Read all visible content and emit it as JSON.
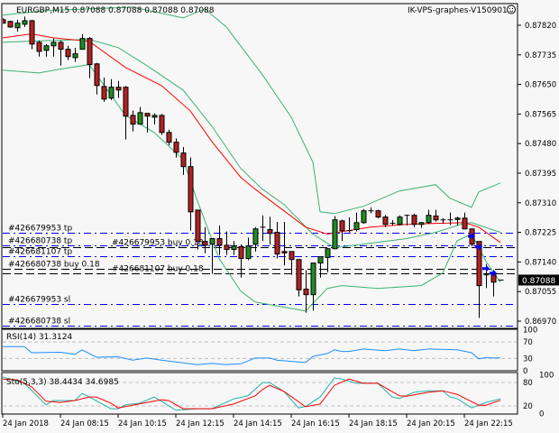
{
  "header": {
    "symbol_line": "EURGBP,M15  0.87088 0.87088 0.87088 0.87088",
    "expert_label": "IK-VPS-graphes-V150901",
    "expert_icon": "smiley-face-icon"
  },
  "colors": {
    "background": "#f7f7f7",
    "bull_candle": "#228b22",
    "bear_candle": "#b22222",
    "bollinger": "#3cb371",
    "moving_average": "#ff0000",
    "order_line": "#0000ff",
    "position_line": "#000000",
    "rsi": "#1e90ff",
    "stoch_main": "#20b2aa",
    "stoch_signal": "#ff0000"
  },
  "chart_data": {
    "type": "candlestick",
    "symbol": "EURGBP",
    "timeframe": "M15",
    "start_time": "06:15",
    "interval_min": 15,
    "current_price": "0.87088",
    "ylim": [
      0.8695,
      0.8787
    ],
    "price_ticks": [
      "0.87820",
      "0.87735",
      "0.87650",
      "0.87565",
      "0.87480",
      "0.87395",
      "0.87310",
      "0.87225",
      "0.87140",
      "0.87055",
      "0.86970"
    ],
    "time_ticks": [
      {
        "time": "06:15",
        "label": "24 Jan 2018"
      },
      {
        "time": "08:15",
        "label": "24 Jan 08:15"
      },
      {
        "time": "10:15",
        "label": "24 Jan 10:15"
      },
      {
        "time": "12:15",
        "label": "24 Jan 12:15"
      },
      {
        "time": "14:15",
        "label": "24 Jan 14:15"
      },
      {
        "time": "16:15",
        "label": "24 Jan 16:15"
      },
      {
        "time": "18:15",
        "label": "24 Jan 18:15"
      },
      {
        "time": "20:15",
        "label": "24 Jan 20:15"
      },
      {
        "time": "22:15",
        "label": "24 Jan 22:15"
      }
    ],
    "ohlc": [
      [
        0.87836,
        0.8784,
        0.87826,
        0.87826
      ],
      [
        0.87831,
        0.87833,
        0.87813,
        0.87815
      ],
      [
        0.87813,
        0.87836,
        0.87802,
        0.87826
      ],
      [
        0.87823,
        0.87845,
        0.87815,
        0.87833
      ],
      [
        0.87833,
        0.87836,
        0.87751,
        0.87766
      ],
      [
        0.87771,
        0.87776,
        0.8773,
        0.87745
      ],
      [
        0.87748,
        0.87766,
        0.8773,
        0.87761
      ],
      [
        0.87761,
        0.87782,
        0.8773,
        0.87771
      ],
      [
        0.87771,
        0.87776,
        0.87704,
        0.87751
      ],
      [
        0.87751,
        0.87761,
        0.8772,
        0.8773
      ],
      [
        0.87727,
        0.87755,
        0.87715,
        0.87738
      ],
      [
        0.87751,
        0.87794,
        0.87751,
        0.87782
      ],
      [
        0.87782,
        0.87786,
        0.87668,
        0.87707
      ],
      [
        0.87709,
        0.87712,
        0.87621,
        0.87647
      ],
      [
        0.87644,
        0.8767,
        0.876,
        0.87608
      ],
      [
        0.87611,
        0.87665,
        0.87605,
        0.87642
      ],
      [
        0.87642,
        0.8766,
        0.87611,
        0.87634
      ],
      [
        0.87642,
        0.87645,
        0.87492,
        0.87559
      ],
      [
        0.87561,
        0.87575,
        0.87515,
        0.87536
      ],
      [
        0.87536,
        0.87585,
        0.87536,
        0.87569
      ],
      [
        0.87567,
        0.87567,
        0.87512,
        0.87559
      ],
      [
        0.87556,
        0.87567,
        0.87535,
        0.87561
      ],
      [
        0.87561,
        0.87565,
        0.87505,
        0.87512
      ],
      [
        0.87512,
        0.8752,
        0.87475,
        0.87484
      ],
      [
        0.87484,
        0.87495,
        0.8744,
        0.87455
      ],
      [
        0.87453,
        0.8747,
        0.8739,
        0.87414
      ],
      [
        0.87414,
        0.8744,
        0.8723,
        0.87284
      ],
      [
        0.87289,
        0.87289,
        0.87176,
        0.87199
      ],
      [
        0.87199,
        0.8724,
        0.87165,
        0.87188
      ],
      [
        0.87191,
        0.87207,
        0.87106,
        0.87207
      ],
      [
        0.87207,
        0.87245,
        0.8716,
        0.87188
      ],
      [
        0.87188,
        0.87228,
        0.8716,
        0.87176
      ],
      [
        0.87176,
        0.872,
        0.8716,
        0.87186
      ],
      [
        0.87184,
        0.8719,
        0.87095,
        0.8715
      ],
      [
        0.8715,
        0.8721,
        0.87145,
        0.87186
      ],
      [
        0.87191,
        0.8724,
        0.8717,
        0.87235
      ],
      [
        0.87238,
        0.87274,
        0.872,
        0.8724
      ],
      [
        0.87233,
        0.8727,
        0.8719,
        0.87222
      ],
      [
        0.87225,
        0.87255,
        0.8715,
        0.87163
      ],
      [
        0.8717,
        0.87255,
        0.8713,
        0.87166
      ],
      [
        0.8717,
        0.8717,
        0.87103,
        0.87147
      ],
      [
        0.87147,
        0.87147,
        0.87041,
        0.8706
      ],
      [
        0.87062,
        0.87116,
        0.86994,
        0.87046
      ],
      [
        0.87046,
        0.87137,
        0.87,
        0.87137
      ],
      [
        0.87137,
        0.87155,
        0.87095,
        0.87155
      ],
      [
        0.87153,
        0.8718,
        0.8711,
        0.87178
      ],
      [
        0.87178,
        0.87272,
        0.87178,
        0.87261
      ],
      [
        0.87258,
        0.87262,
        0.872,
        0.8723
      ],
      [
        0.8723,
        0.87268,
        0.87225,
        0.8723
      ],
      [
        0.87233,
        0.87282,
        0.87228,
        0.87253
      ],
      [
        0.87253,
        0.87292,
        0.8725,
        0.87287
      ],
      [
        0.87287,
        0.87297,
        0.8728,
        0.87287
      ],
      [
        0.87287,
        0.8729,
        0.87265,
        0.87269
      ],
      [
        0.87269,
        0.87275,
        0.8724,
        0.87248
      ],
      [
        0.87251,
        0.8726,
        0.87245,
        0.8725
      ],
      [
        0.87248,
        0.87274,
        0.87245,
        0.87269
      ],
      [
        0.87274,
        0.87276,
        0.87245,
        0.87274
      ],
      [
        0.87274,
        0.87278,
        0.8724,
        0.87248
      ],
      [
        0.87248,
        0.87255,
        0.87238,
        0.87253
      ],
      [
        0.87253,
        0.8729,
        0.8725,
        0.87274
      ],
      [
        0.87272,
        0.8729,
        0.87256,
        0.87261
      ],
      [
        0.87261,
        0.87266,
        0.8725,
        0.87261
      ],
      [
        0.87261,
        0.87282,
        0.87246,
        0.87261
      ],
      [
        0.87262,
        0.8727,
        0.87245,
        0.87266
      ],
      [
        0.87266,
        0.87282,
        0.87235,
        0.87235
      ],
      [
        0.87235,
        0.87235,
        0.87185,
        0.87191
      ],
      [
        0.87199,
        0.87199,
        0.86979,
        0.87072
      ],
      [
        0.87103,
        0.87134,
        0.87065,
        0.87103
      ],
      [
        0.87103,
        0.87105,
        0.87041,
        0.87082
      ],
      [
        0.87088,
        0.87088,
        0.87088,
        0.87088
      ]
    ],
    "moving_average": [
      [
        "06:15",
        0.87784
      ],
      [
        "07:15",
        0.87795
      ],
      [
        "08:00",
        0.87784
      ],
      [
        "09:15",
        0.87774
      ],
      [
        "10:30",
        0.87699
      ],
      [
        "11:45",
        0.87647
      ],
      [
        "12:45",
        0.87574
      ],
      [
        "13:30",
        0.87486
      ],
      [
        "14:30",
        0.87383
      ],
      [
        "15:00",
        0.87349
      ],
      [
        "16:45",
        0.8724
      ],
      [
        "17:30",
        0.8722
      ],
      [
        "18:00",
        0.87227
      ],
      [
        "19:00",
        0.8724
      ],
      [
        "20:15",
        0.87248
      ],
      [
        "21:15",
        0.87251
      ],
      [
        "22:15",
        0.87253
      ],
      [
        "22:45",
        0.8724
      ],
      [
        "23:30",
        0.87196
      ]
    ],
    "bollinger_upper": [
      [
        "06:15",
        0.87849
      ],
      [
        "07:45",
        0.87862
      ],
      [
        "10:45",
        0.87872
      ],
      [
        "12:30",
        0.87841
      ],
      [
        "13:15",
        0.87867
      ],
      [
        "14:00",
        0.87815
      ],
      [
        "15:15",
        0.87678
      ],
      [
        "16:15",
        0.87556
      ],
      [
        "17:00",
        0.87427
      ],
      [
        "17:15",
        0.87284
      ],
      [
        "17:45",
        0.87279
      ],
      [
        "18:45",
        0.873
      ],
      [
        "20:00",
        0.87344
      ],
      [
        "21:15",
        0.87362
      ],
      [
        "21:45",
        0.87323
      ],
      [
        "22:30",
        0.87297
      ],
      [
        "22:45",
        0.87341
      ],
      [
        "23:30",
        0.87367
      ]
    ],
    "bollinger_middle": [
      [
        "06:15",
        0.87771
      ],
      [
        "07:45",
        0.87776
      ],
      [
        "09:15",
        0.87779
      ],
      [
        "10:15",
        0.87756
      ],
      [
        "11:15",
        0.87704
      ],
      [
        "12:30",
        0.87634
      ],
      [
        "13:30",
        0.8753
      ],
      [
        "14:30",
        0.87409
      ],
      [
        "15:15",
        0.87349
      ],
      [
        "16:00",
        0.87305
      ],
      [
        "17:00",
        0.8722
      ],
      [
        "17:45",
        0.87181
      ],
      [
        "19:00",
        0.87194
      ],
      [
        "20:15",
        0.87207
      ],
      [
        "21:15",
        0.87225
      ],
      [
        "22:15",
        0.87251
      ],
      [
        "22:30",
        0.87253
      ],
      [
        "23:30",
        0.87225
      ]
    ],
    "bollinger_lower": [
      [
        "06:15",
        0.87691
      ],
      [
        "07:30",
        0.87683
      ],
      [
        "08:15",
        0.87694
      ],
      [
        "09:15",
        0.87707
      ],
      [
        "10:30",
        0.87561
      ],
      [
        "11:30",
        0.87512
      ],
      [
        "12:30",
        0.87435
      ],
      [
        "13:00",
        0.87315
      ],
      [
        "13:45",
        0.8715
      ],
      [
        "14:30",
        0.87056
      ],
      [
        "15:00",
        0.87025
      ],
      [
        "16:45",
        0.86999
      ],
      [
        "17:30",
        0.87064
      ],
      [
        "18:00",
        0.87072
      ],
      [
        "19:15",
        0.87064
      ],
      [
        "20:45",
        0.87072
      ],
      [
        "21:30",
        0.87108
      ],
      [
        "22:00",
        0.87201
      ],
      [
        "22:30",
        0.8722
      ],
      [
        "23:00",
        0.87142
      ],
      [
        "23:30",
        0.87082
      ]
    ],
    "trade_lines": [
      {
        "label": "#426679953 tp",
        "price": 0.87225,
        "kind": "order"
      },
      {
        "label": "#426680738 tp",
        "price": 0.87188,
        "kind": "order"
      },
      {
        "label": "#426679953 buy 0.18",
        "price": 0.87183,
        "kind": "position"
      },
      {
        "label": "#426681107 tp",
        "price": 0.87157,
        "kind": "order"
      },
      {
        "label": "#426680738 buy 0.18",
        "price": 0.87121,
        "kind": "position"
      },
      {
        "label": "#426681107 buy 0.18",
        "price": 0.87108,
        "kind": "position"
      },
      {
        "label": "#426679953 sl",
        "price": 0.8702,
        "kind": "order"
      },
      {
        "label": "#426680738 sl",
        "price": 0.86958,
        "kind": "order"
      }
    ],
    "trade_arrows": [
      [
        "22:30",
        0.87214
      ],
      [
        "22:45",
        0.87183
      ],
      [
        "23:00",
        0.87121
      ],
      [
        "23:15",
        0.87108
      ]
    ],
    "rsi": {
      "title": "RSI(14) 31.3124",
      "ylim": [
        0,
        100
      ],
      "levels": [
        70,
        30
      ],
      "tick_labels": [
        "100",
        "70",
        "30",
        "0"
      ],
      "values": [
        [
          "06:15",
          59
        ],
        [
          "07:00",
          59
        ],
        [
          "07:15",
          44
        ],
        [
          "08:15",
          45
        ],
        [
          "08:45",
          40
        ],
        [
          "09:00",
          51
        ],
        [
          "09:30",
          33
        ],
        [
          "10:15",
          34
        ],
        [
          "10:45",
          26
        ],
        [
          "11:15",
          31
        ],
        [
          "11:45",
          26
        ],
        [
          "13:00",
          15
        ],
        [
          "13:30",
          18
        ],
        [
          "14:00",
          15
        ],
        [
          "14:30",
          17
        ],
        [
          "15:00",
          31
        ],
        [
          "15:30",
          31
        ],
        [
          "15:45",
          26
        ],
        [
          "16:45",
          20
        ],
        [
          "17:00",
          35
        ],
        [
          "17:30",
          42
        ],
        [
          "17:45",
          51
        ],
        [
          "18:00",
          47
        ],
        [
          "18:15",
          47
        ],
        [
          "18:45",
          53
        ],
        [
          "19:30",
          49
        ],
        [
          "20:00",
          53
        ],
        [
          "20:30",
          49
        ],
        [
          "21:00",
          53
        ],
        [
          "22:00",
          51
        ],
        [
          "22:30",
          44
        ],
        [
          "22:45",
          29
        ],
        [
          "23:00",
          32
        ],
        [
          "23:15",
          31
        ],
        [
          "23:30",
          31.3
        ]
      ]
    },
    "stochastic": {
      "title": "Sto(5,3,3) 38.4434 34.6985",
      "ylim": [
        0,
        100
      ],
      "levels": [
        80,
        20
      ],
      "tick_labels": [
        "100",
        "80",
        "20",
        "0"
      ],
      "main": [
        [
          "06:15",
          94
        ],
        [
          "07:00",
          78
        ],
        [
          "07:45",
          23
        ],
        [
          "08:00",
          34
        ],
        [
          "08:45",
          34
        ],
        [
          "09:00",
          52
        ],
        [
          "09:15",
          43
        ],
        [
          "10:00",
          13
        ],
        [
          "10:15",
          13
        ],
        [
          "10:30",
          23
        ],
        [
          "11:00",
          27
        ],
        [
          "11:30",
          43
        ],
        [
          "11:45",
          32
        ],
        [
          "12:15",
          9
        ],
        [
          "13:00",
          13
        ],
        [
          "13:30",
          13
        ],
        [
          "14:15",
          38
        ],
        [
          "14:45",
          46
        ],
        [
          "15:15",
          80
        ],
        [
          "15:30",
          80
        ],
        [
          "16:00",
          57
        ],
        [
          "16:30",
          15
        ],
        [
          "16:45",
          19
        ],
        [
          "17:15",
          43
        ],
        [
          "17:45",
          92
        ],
        [
          "18:00",
          89
        ],
        [
          "18:30",
          78
        ],
        [
          "19:15",
          78
        ],
        [
          "19:45",
          43
        ],
        [
          "20:00",
          39
        ],
        [
          "20:30",
          55
        ],
        [
          "21:00",
          59
        ],
        [
          "21:30",
          59
        ],
        [
          "21:45",
          43
        ],
        [
          "22:00",
          39
        ],
        [
          "22:30",
          15
        ],
        [
          "23:00",
          29
        ],
        [
          "23:30",
          38.4
        ]
      ],
      "signal": [
        [
          "06:15",
          89
        ],
        [
          "06:45",
          87
        ],
        [
          "07:15",
          69
        ],
        [
          "07:45",
          32
        ],
        [
          "08:15",
          29
        ],
        [
          "08:45",
          34
        ],
        [
          "09:15",
          43
        ],
        [
          "09:30",
          43
        ],
        [
          "10:00",
          27
        ],
        [
          "10:15",
          15
        ],
        [
          "10:45",
          22
        ],
        [
          "11:15",
          29
        ],
        [
          "11:45",
          36
        ],
        [
          "12:00",
          34
        ],
        [
          "12:30",
          13
        ],
        [
          "13:30",
          13
        ],
        [
          "14:15",
          25
        ],
        [
          "15:00",
          46
        ],
        [
          "15:15",
          62
        ],
        [
          "15:30",
          73
        ],
        [
          "16:00",
          57
        ],
        [
          "16:45",
          18
        ],
        [
          "17:15",
          25
        ],
        [
          "17:45",
          73
        ],
        [
          "18:15",
          89
        ],
        [
          "18:45",
          78
        ],
        [
          "19:15",
          78
        ],
        [
          "20:00",
          46
        ],
        [
          "20:15",
          45
        ],
        [
          "21:00",
          55
        ],
        [
          "21:30",
          59
        ],
        [
          "22:00",
          50
        ],
        [
          "22:45",
          22
        ],
        [
          "23:00",
          22
        ],
        [
          "23:30",
          34.7
        ]
      ]
    }
  }
}
